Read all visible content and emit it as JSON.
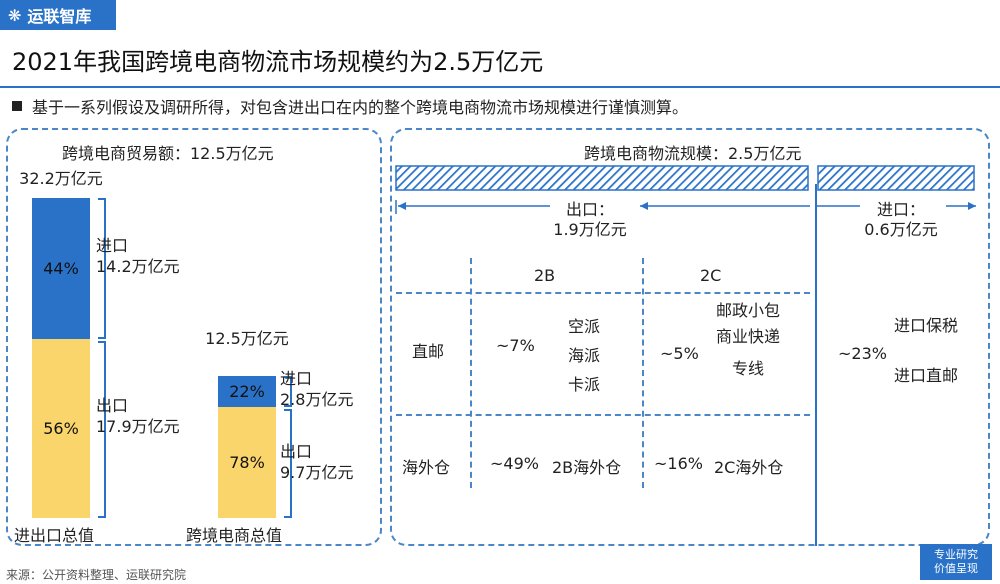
{
  "brand": {
    "name": "运联智库"
  },
  "header": {
    "title": "2021年我国跨境电商物流市场规模约为2.5万亿元",
    "bullet": "基于一系列假设及调研所得，对包含进出口在内的整个跨境电商物流市场规模进行谨慎测算。"
  },
  "chart_data": {
    "type": "bar",
    "title": "跨境电商贸易额：12.5万亿元",
    "categories": [
      "进出口总值",
      "跨境电商总值"
    ],
    "totals": [
      "32.2万亿元",
      "12.5万亿元"
    ],
    "series": [
      {
        "name": "出口",
        "percents": [
          56,
          78
        ],
        "labels": [
          "56%",
          "78%"
        ],
        "amounts": [
          "17.9万亿元",
          "9.7万亿元"
        ]
      },
      {
        "name": "进口",
        "percents": [
          44,
          22
        ],
        "labels": [
          "44%",
          "22%"
        ],
        "amounts": [
          "14.2万亿元",
          "2.8万亿元"
        ]
      }
    ],
    "totals_values": [
      32.2,
      12.5
    ]
  },
  "logistics": {
    "title": "跨境电商物流规模：2.5万亿元",
    "export_label": "出口：",
    "export_value": "1.9万亿元",
    "import_label": "进口：",
    "import_value": "0.6万亿元",
    "col_2b": "2B",
    "col_2c": "2C",
    "row_direct": "直邮",
    "row_overseas": "海外仓",
    "direct_2b_pct": "~7%",
    "direct_2b_modes": [
      "空派",
      "海派",
      "卡派"
    ],
    "direct_2c_pct": "~5%",
    "direct_2c_modes": [
      "邮政小包",
      "商业快递",
      "专线"
    ],
    "overseas_2b_pct": "~49%",
    "overseas_2b_label": "2B海外仓",
    "overseas_2c_pct": "~16%",
    "overseas_2c_label": "2C海外仓",
    "import_pct": "~23%",
    "import_modes": [
      "进口保税",
      "进口直邮"
    ]
  },
  "footer": {
    "source": "来源：公开资料整理、运联研究院",
    "stamp_line1": "专业研究",
    "stamp_line2": "价值呈现"
  }
}
